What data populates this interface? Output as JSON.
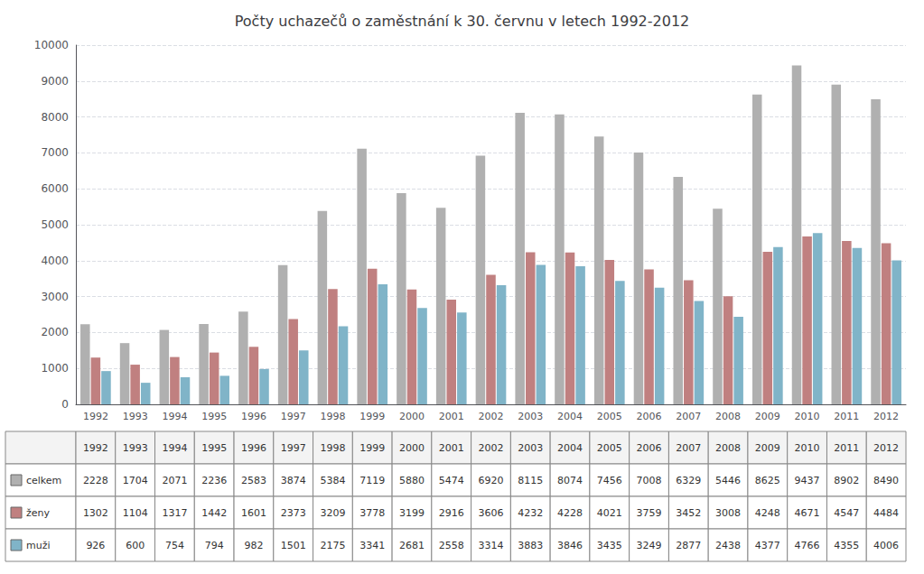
{
  "chart_data": {
    "type": "bar",
    "title": "Počty uchazečů o zaměstnání k 30. červnu v letech 1992-2012",
    "categories": [
      "1992",
      "1993",
      "1994",
      "1995",
      "1996",
      "1997",
      "1998",
      "1999",
      "2000",
      "2001",
      "2002",
      "2003",
      "2004",
      "2005",
      "2006",
      "2007",
      "2008",
      "2009",
      "2010",
      "2011",
      "2012"
    ],
    "series": [
      {
        "name": "celkem",
        "color": "#b0b0b0",
        "values": [
          2228,
          1704,
          2071,
          2236,
          2583,
          3874,
          5384,
          7119,
          5880,
          5474,
          6920,
          8115,
          8074,
          7456,
          7008,
          6329,
          5446,
          8625,
          9437,
          8902,
          8490
        ]
      },
      {
        "name": "ženy",
        "color": "#c08080",
        "values": [
          1302,
          1104,
          1317,
          1442,
          1601,
          2373,
          3209,
          3778,
          3199,
          2916,
          3606,
          4232,
          4228,
          4021,
          3759,
          3452,
          3008,
          4248,
          4671,
          4547,
          4484
        ]
      },
      {
        "name": "muži",
        "color": "#80b4c8",
        "values": [
          926,
          600,
          754,
          794,
          982,
          1501,
          2175,
          3341,
          2681,
          2558,
          3314,
          3883,
          3846,
          3435,
          3249,
          2877,
          2438,
          4377,
          4766,
          4355,
          4006
        ]
      }
    ],
    "ylim": [
      0,
      10000
    ],
    "yticks": [
      0,
      1000,
      2000,
      3000,
      4000,
      5000,
      6000,
      7000,
      8000,
      9000,
      10000
    ],
    "grid": true
  }
}
